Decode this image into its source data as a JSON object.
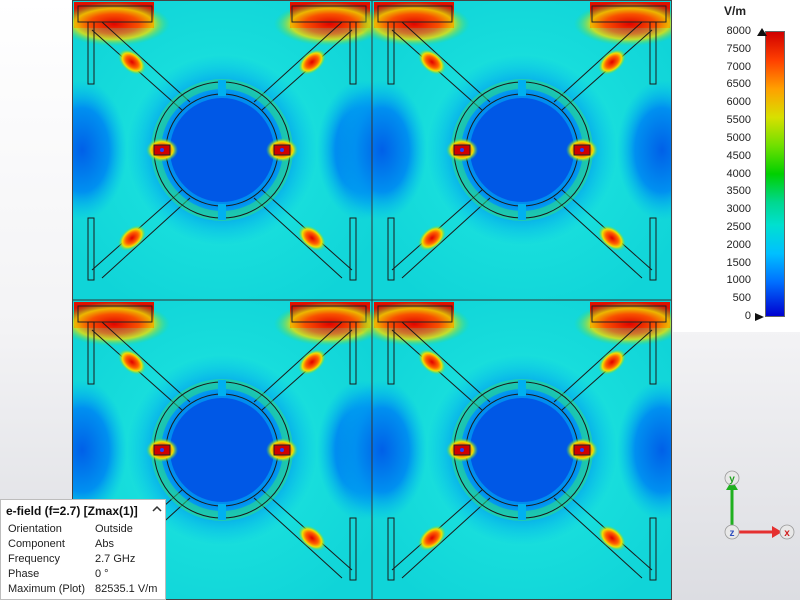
{
  "legend": {
    "unit": "V/m",
    "ticks": [
      "8000",
      "7500",
      "7000",
      "6500",
      "6000",
      "5500",
      "5000",
      "4500",
      "4000",
      "3500",
      "3000",
      "2500",
      "2000",
      "1500",
      "1000",
      "500",
      "0"
    ]
  },
  "info": {
    "title": "e-field (f=2.7) [Zmax(1)]",
    "rows": [
      {
        "label": "Orientation",
        "value": "Outside"
      },
      {
        "label": "Component",
        "value": "Abs"
      },
      {
        "label": "Frequency",
        "value": "2.7 GHz"
      },
      {
        "label": "Phase",
        "value": "0 °"
      },
      {
        "label": "Maximum (Plot)",
        "value": "82535.1 V/m"
      }
    ]
  },
  "axes": {
    "x": "x",
    "y": "y",
    "z": "z"
  },
  "colors": {
    "background_field": "#00d0d8",
    "low_field": "#0050e0",
    "mid_field": "#00d060",
    "high_field": "#e01000",
    "x_axis": "#e53030",
    "y_axis": "#20b020",
    "z_axis": "#3050c0"
  },
  "icons": {
    "collapse": "chevron-up-icon",
    "axis_x": "x-axis-arrow-icon",
    "axis_y": "y-axis-arrow-icon",
    "axis_z": "z-axis-dot-icon"
  }
}
